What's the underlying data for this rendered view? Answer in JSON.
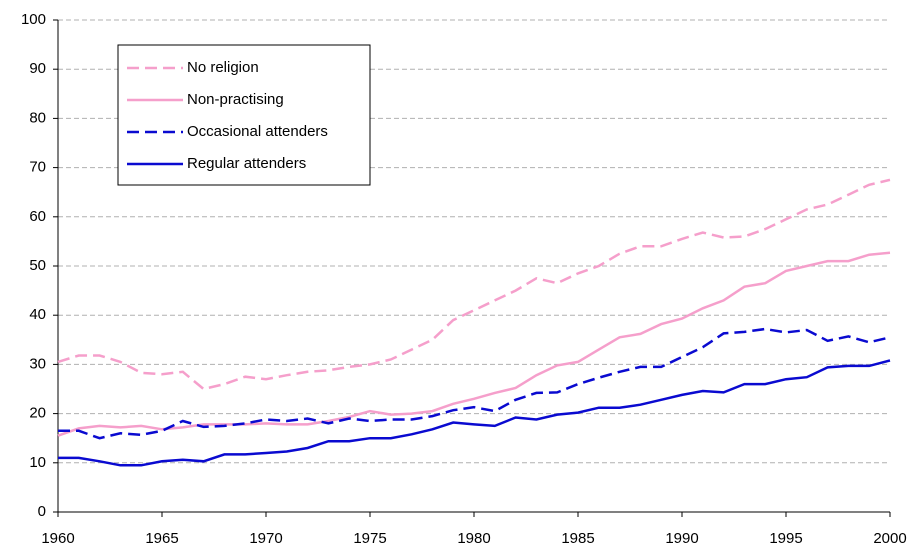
{
  "chart_data": {
    "type": "line",
    "x": [
      1960,
      1961,
      1962,
      1963,
      1964,
      1965,
      1966,
      1967,
      1968,
      1969,
      1970,
      1971,
      1972,
      1973,
      1974,
      1975,
      1976,
      1977,
      1978,
      1979,
      1980,
      1981,
      1982,
      1983,
      1984,
      1985,
      1986,
      1987,
      1988,
      1989,
      1990,
      1991,
      1992,
      1993,
      1994,
      1995,
      1996,
      1997,
      1998,
      1999,
      2000
    ],
    "series": [
      {
        "name": "No religion",
        "color": "#f59fcb",
        "dashed": true,
        "values": [
          30.5,
          31.8,
          31.8,
          30.5,
          28.3,
          28,
          28.5,
          25,
          26,
          27.5,
          27,
          27.8,
          28.5,
          28.8,
          29.5,
          30,
          31,
          33,
          35,
          39,
          41,
          43,
          45,
          47.5,
          46.5,
          48.5,
          50,
          52.5,
          54,
          54,
          55.5,
          56.8,
          55.8,
          56,
          57.5,
          59.5,
          61.5,
          62.5,
          64.5,
          66.5,
          67.5
        ]
      },
      {
        "name": "Non-practising",
        "color": "#f59fcb",
        "dashed": false,
        "values": [
          15.5,
          17,
          17.5,
          17.2,
          17.5,
          16.8,
          17.2,
          17.8,
          17.8,
          17.8,
          18,
          17.8,
          17.8,
          18.5,
          19.3,
          20.5,
          19.8,
          20,
          20.5,
          22,
          23,
          24.2,
          25.2,
          27.8,
          29.8,
          30.5,
          33,
          35.5,
          36.2,
          38.2,
          39.3,
          41.4,
          43,
          45.8,
          46.5,
          49,
          50,
          51,
          51,
          52.3,
          52.7
        ]
      },
      {
        "name": "Occasional attenders",
        "color": "#0a0ad0",
        "dashed": true,
        "values": [
          16.5,
          16.5,
          15,
          16,
          15.7,
          16.5,
          18.5,
          17.3,
          17.5,
          18,
          18.8,
          18.5,
          19,
          18,
          19,
          18.5,
          18.8,
          18.8,
          19.5,
          20.7,
          21.3,
          20.5,
          22.8,
          24.2,
          24.3,
          26,
          27.3,
          28.5,
          29.5,
          29.5,
          31.5,
          33.5,
          36.3,
          36.6,
          37.2,
          36.5,
          37,
          34.8,
          35.7,
          34.5,
          35.5
        ]
      },
      {
        "name": "Regular attenders",
        "color": "#0a0ad0",
        "dashed": false,
        "values": [
          11,
          11,
          10.3,
          9.5,
          9.5,
          10.3,
          10.6,
          10.3,
          11.7,
          11.7,
          12,
          12.3,
          13,
          14.4,
          14.4,
          15,
          15,
          15.8,
          16.8,
          18.2,
          17.8,
          17.5,
          19.2,
          18.8,
          19.8,
          20.2,
          21.2,
          21.2,
          21.8,
          22.8,
          23.8,
          24.6,
          24.3,
          26,
          26,
          27,
          27.4,
          29.4,
          29.7,
          29.7,
          30.8
        ]
      }
    ],
    "xlim": [
      1960,
      2000
    ],
    "xticks": [
      1960,
      1965,
      1970,
      1975,
      1980,
      1985,
      1990,
      1995,
      2000
    ],
    "ylim": [
      0,
      100
    ],
    "yticks": [
      0,
      10,
      20,
      30,
      40,
      50,
      60,
      70,
      80,
      90,
      100
    ],
    "grid": true
  }
}
